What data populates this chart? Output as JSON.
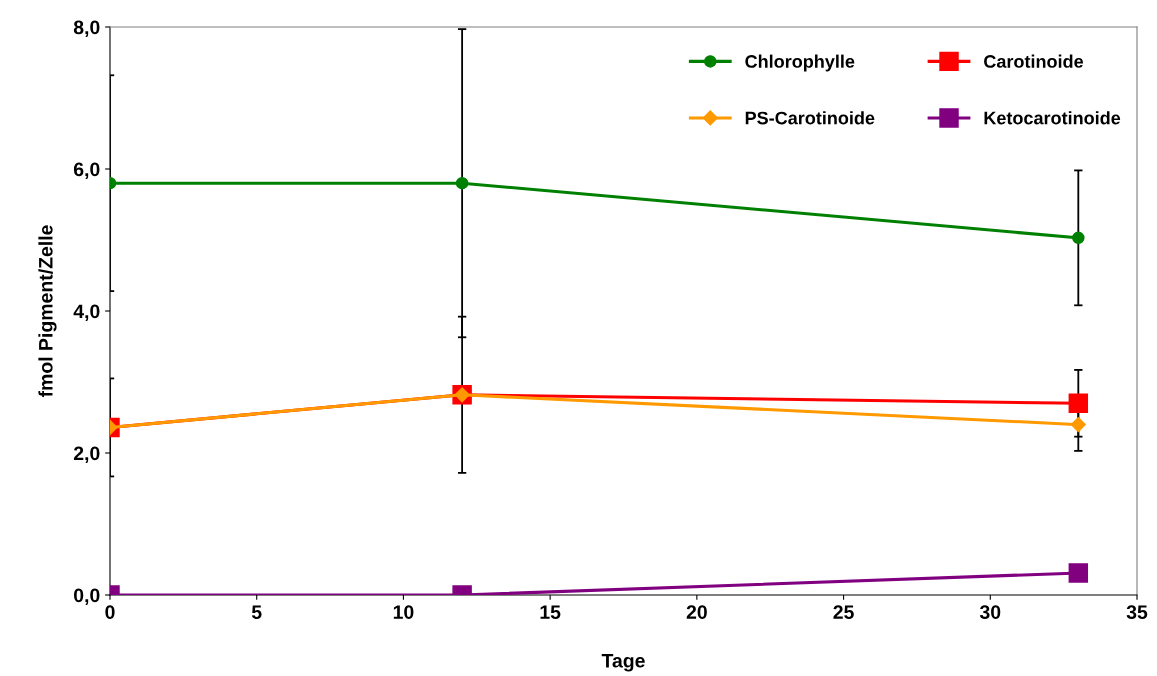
{
  "chart_data": {
    "type": "line",
    "xlabel": "Tage",
    "ylabel": "fmol Pigment/Zelle",
    "x": [
      0,
      12,
      33
    ],
    "series": [
      {
        "name": "Chlorophylle",
        "color": "#008000",
        "marker": "circle",
        "values": [
          5.8,
          5.8,
          5.03
        ],
        "errors": [
          1.52,
          2.17,
          0.95
        ]
      },
      {
        "name": "Carotinoide",
        "color": "#ff0000",
        "marker": "square",
        "values": [
          2.36,
          2.82,
          2.7
        ],
        "errors": [
          0.69,
          1.1,
          0.47
        ]
      },
      {
        "name": "PS-Carotinoide",
        "color": "#ff9900",
        "marker": "diamond",
        "values": [
          2.36,
          2.82,
          2.4
        ],
        "errors": [
          null,
          null,
          0.37
        ]
      },
      {
        "name": "Ketocarotinoide",
        "color": "#800080",
        "marker": "square",
        "values": [
          0,
          0,
          0.31
        ]
      }
    ],
    "xlim": [
      0,
      35
    ],
    "xticks": [
      0,
      5,
      10,
      15,
      20,
      25,
      30,
      35
    ],
    "ylim": [
      0,
      8
    ],
    "yticks": [
      {
        "value": 0,
        "label": "0,0"
      },
      {
        "value": 2,
        "label": "2,0"
      },
      {
        "value": 4,
        "label": "4,0"
      },
      {
        "value": 6,
        "label": "6,0"
      },
      {
        "value": 8,
        "label": "8,0"
      }
    ],
    "grid": false,
    "legend": "top right",
    "line_style": "solid"
  }
}
